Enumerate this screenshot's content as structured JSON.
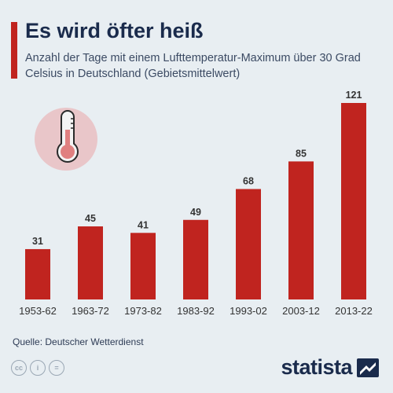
{
  "header": {
    "title": "Es wird öfter heiß",
    "subtitle": "Anzahl der Tage mit einem Lufttemperatur-Maximum über 30 Grad Celsius in Deutschland (Gebietsmittelwert)"
  },
  "footer": {
    "source": "Quelle: Deutscher Wetterdienst",
    "brand": "statista"
  },
  "icons": [
    "thermometer-icon",
    "cc-icon",
    "by-icon",
    "nd-icon",
    "statista-logo-icon"
  ],
  "colors": {
    "bar": "#c0241f",
    "background": "#e8eef2",
    "title": "#1a2b4c"
  },
  "chart_data": {
    "type": "bar",
    "categories": [
      "1953-62",
      "1963-72",
      "1973-82",
      "1983-92",
      "1993-02",
      "2003-12",
      "2013-22"
    ],
    "values": [
      31,
      45,
      41,
      49,
      68,
      85,
      121
    ],
    "title": "Es wird öfter heiß",
    "xlabel": "",
    "ylabel": "",
    "ylim": [
      0,
      121
    ],
    "grid": false,
    "legend": "none"
  }
}
